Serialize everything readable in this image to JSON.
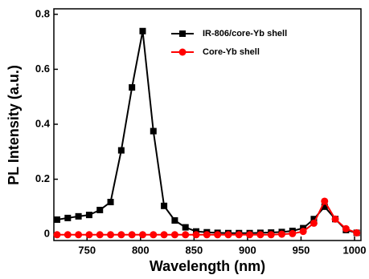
{
  "chart_data": {
    "type": "line",
    "x_label": "Wavelength (nm)",
    "y_label": "PL Intensity (a.u.)",
    "x": [
      722,
      732,
      742,
      752,
      762,
      772,
      782,
      792,
      802,
      812,
      822,
      832,
      842,
      852,
      862,
      872,
      882,
      892,
      902,
      912,
      922,
      932,
      942,
      952,
      962,
      972,
      982,
      992,
      1002
    ],
    "series": [
      {
        "name": "IR-806/core-Yb shell",
        "color": "#000000",
        "marker": "square",
        "values": [
          0.053,
          0.059,
          0.065,
          0.07,
          0.088,
          0.117,
          0.305,
          0.534,
          0.739,
          0.375,
          0.103,
          0.05,
          0.025,
          0.01,
          0.007,
          0.005,
          0.004,
          0.004,
          0.004,
          0.005,
          0.006,
          0.008,
          0.012,
          0.022,
          0.055,
          0.1,
          0.055,
          0.015,
          0.005
        ]
      },
      {
        "name": "Core-Yb shell",
        "color": "#ff0000",
        "marker": "circle",
        "values": [
          -0.002,
          -0.002,
          -0.002,
          -0.002,
          -0.002,
          -0.002,
          -0.002,
          -0.002,
          -0.002,
          -0.002,
          -0.002,
          -0.002,
          -0.002,
          -0.002,
          -0.002,
          -0.002,
          -0.002,
          -0.002,
          -0.002,
          -0.002,
          -0.002,
          0.0,
          0.002,
          0.01,
          0.04,
          0.12,
          0.055,
          0.02,
          0.005
        ]
      }
    ],
    "xlim": [
      719,
      1006
    ],
    "ylim": [
      -0.023,
      0.82
    ],
    "xticks": [
      750,
      800,
      850,
      900,
      950,
      1000
    ],
    "yticks": [
      0,
      0.2,
      0.4,
      0.6,
      0.8
    ]
  }
}
